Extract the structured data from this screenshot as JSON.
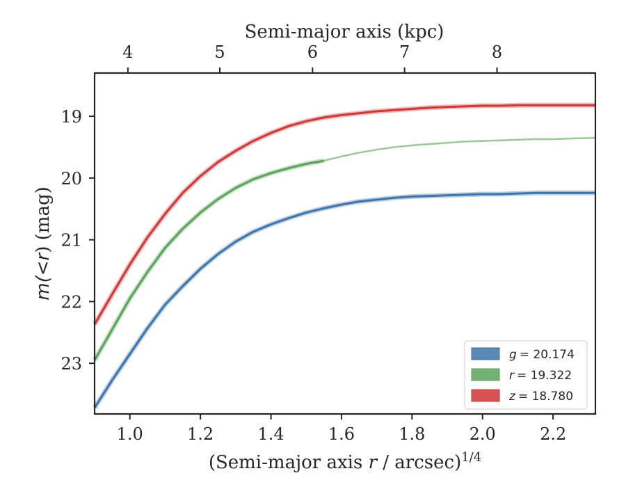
{
  "chart_data": {
    "type": "line",
    "xlabel_prefix": "(Semi-major axis ",
    "xlabel_var": "r",
    "xlabel_suffix": " / arcsec)",
    "xlabel_exp": "1/4",
    "top_xlabel": "Semi-major axis (kpc)",
    "ylabel_prefix": "m(",
    "ylabel_mid": "<",
    "ylabel_var": "r",
    "ylabel_suffix": ") (mag)",
    "xlim": [
      0.9,
      2.32
    ],
    "ylim": [
      23.82,
      18.3
    ],
    "y_inverted": true,
    "x_ticks": [
      1.0,
      1.2,
      1.4,
      1.6,
      1.8,
      2.0,
      2.2
    ],
    "x_tick_labels": [
      "1.0",
      "1.2",
      "1.4",
      "1.6",
      "1.8",
      "2.0",
      "2.2"
    ],
    "y_ticks": [
      19,
      20,
      21,
      22,
      23
    ],
    "y_tick_labels": [
      "19",
      "20",
      "21",
      "22",
      "23"
    ],
    "top_ticks_kpc": [
      4,
      5,
      6,
      7,
      8
    ],
    "top_tick_labels": [
      "4",
      "5",
      "6",
      "7",
      "8"
    ],
    "kpc_to_x": [
      [
        4,
        0.9945
      ],
      [
        5,
        1.255
      ],
      [
        6,
        1.518
      ],
      [
        7,
        1.779
      ],
      [
        8,
        2.041
      ]
    ],
    "legend_position": "lower-right",
    "series": [
      {
        "name": "g",
        "legend_value": "= 20.174",
        "color": "#3d74a8",
        "x": [
          0.9,
          0.95,
          1.0,
          1.05,
          1.1,
          1.15,
          1.2,
          1.25,
          1.3,
          1.35,
          1.4,
          1.45,
          1.5,
          1.55,
          1.6,
          1.65,
          1.7,
          1.75,
          1.8,
          1.85,
          1.9,
          1.95,
          2.0,
          2.05,
          2.1,
          2.15,
          2.2,
          2.25,
          2.32
        ],
        "y": [
          23.72,
          23.27,
          22.85,
          22.43,
          22.05,
          21.75,
          21.47,
          21.23,
          21.03,
          20.87,
          20.75,
          20.65,
          20.56,
          20.49,
          20.43,
          20.38,
          20.35,
          20.32,
          20.3,
          20.29,
          20.28,
          20.27,
          20.26,
          20.26,
          20.25,
          20.24,
          20.24,
          20.24,
          20.24
        ]
      },
      {
        "name": "r",
        "legend_value": "= 19.322",
        "color": "#5aa35a",
        "x": [
          0.9,
          0.95,
          1.0,
          1.05,
          1.1,
          1.15,
          1.2,
          1.25,
          1.3,
          1.35,
          1.4,
          1.45,
          1.5,
          1.55
        ],
        "y": [
          22.95,
          22.45,
          21.95,
          21.52,
          21.13,
          20.82,
          20.56,
          20.34,
          20.16,
          20.02,
          19.92,
          19.84,
          19.77,
          19.72
        ],
        "extension_x": [
          1.55,
          1.6,
          1.65,
          1.7,
          1.75,
          1.8,
          1.85,
          1.9,
          1.95,
          2.0,
          2.05,
          2.1,
          2.15,
          2.2,
          2.25,
          2.32
        ],
        "extension_y": [
          19.72,
          19.65,
          19.59,
          19.54,
          19.5,
          19.47,
          19.45,
          19.43,
          19.41,
          19.4,
          19.39,
          19.38,
          19.37,
          19.37,
          19.36,
          19.35
        ]
      },
      {
        "name": "z",
        "legend_value": "= 18.780",
        "color": "#cf3636",
        "x": [
          0.9,
          0.95,
          1.0,
          1.05,
          1.1,
          1.15,
          1.2,
          1.25,
          1.3,
          1.35,
          1.4,
          1.45,
          1.5,
          1.55,
          1.6,
          1.65,
          1.7,
          1.75,
          1.8,
          1.85,
          1.9,
          1.95,
          2.0,
          2.05,
          2.1,
          2.15,
          2.2,
          2.25,
          2.32
        ],
        "y": [
          22.37,
          21.88,
          21.4,
          20.96,
          20.58,
          20.24,
          19.97,
          19.74,
          19.56,
          19.4,
          19.27,
          19.16,
          19.08,
          19.02,
          18.98,
          18.95,
          18.92,
          18.9,
          18.88,
          18.86,
          18.85,
          18.84,
          18.83,
          18.83,
          18.82,
          18.82,
          18.82,
          18.82,
          18.82
        ]
      }
    ]
  }
}
